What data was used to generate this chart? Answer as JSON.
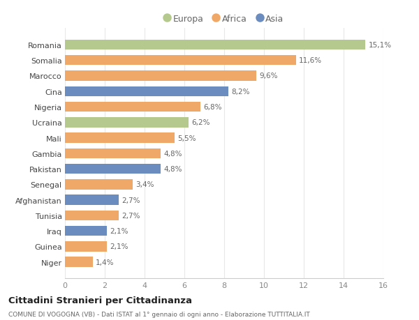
{
  "categories": [
    "Romania",
    "Somalia",
    "Marocco",
    "Cina",
    "Nigeria",
    "Ucraina",
    "Mali",
    "Gambia",
    "Pakistan",
    "Senegal",
    "Afghanistan",
    "Tunisia",
    "Iraq",
    "Guinea",
    "Niger"
  ],
  "values": [
    15.1,
    11.6,
    9.6,
    8.2,
    6.8,
    6.2,
    5.5,
    4.8,
    4.8,
    3.4,
    2.7,
    2.7,
    2.1,
    2.1,
    1.4
  ],
  "labels": [
    "15,1%",
    "11,6%",
    "9,6%",
    "8,2%",
    "6,8%",
    "6,2%",
    "5,5%",
    "4,8%",
    "4,8%",
    "3,4%",
    "2,7%",
    "2,7%",
    "2,1%",
    "2,1%",
    "1,4%"
  ],
  "continents": [
    "Europa",
    "Africa",
    "Africa",
    "Asia",
    "Africa",
    "Europa",
    "Africa",
    "Africa",
    "Asia",
    "Africa",
    "Asia",
    "Africa",
    "Asia",
    "Africa",
    "Africa"
  ],
  "colors": {
    "Europa": "#b5c98e",
    "Africa": "#f0a868",
    "Asia": "#6b8cbf"
  },
  "legend_labels": [
    "Europa",
    "Africa",
    "Asia"
  ],
  "title": "Cittadini Stranieri per Cittadinanza",
  "subtitle": "COMUNE DI VOGOGNA (VB) - Dati ISTAT al 1° gennaio di ogni anno - Elaborazione TUTTITALIA.IT",
  "xlim": [
    0,
    16
  ],
  "xticks": [
    0,
    2,
    4,
    6,
    8,
    10,
    12,
    14,
    16
  ],
  "bg_color": "#ffffff",
  "grid_color": "#e8e8e8",
  "bar_height": 0.65
}
